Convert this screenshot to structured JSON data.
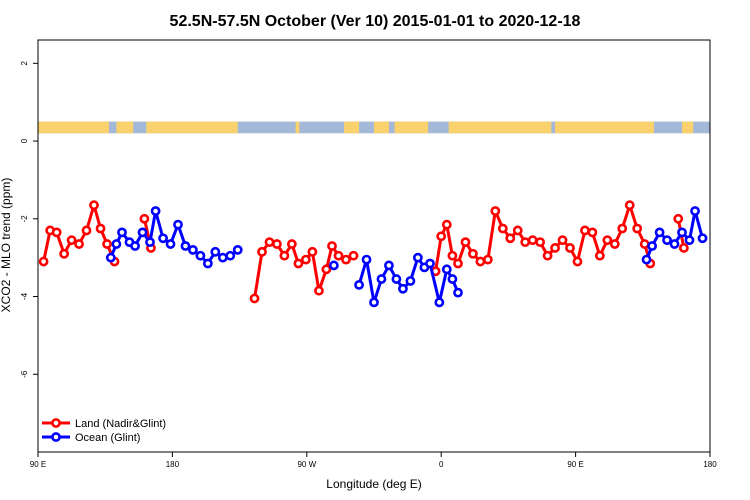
{
  "chart_data": {
    "type": "line",
    "title": "52.5N-57.5N October (Ver 10)   2015-01-01 to 2020-12-18",
    "xlabel": "Longitude (deg E)",
    "ylabel": "XCO2 - MLO trend (ppm)",
    "xlim": [
      90,
      450
    ],
    "ylim": [
      -8,
      2.6
    ],
    "x_ticks": [
      {
        "value": 90,
        "label": "90 E"
      },
      {
        "value": 162,
        "label": "180"
      },
      {
        "value": 234,
        "label": "90 W"
      },
      {
        "value": 306,
        "label": "0"
      },
      {
        "value": 378,
        "label": "90 E"
      },
      {
        "value": 450,
        "label": "180"
      }
    ],
    "y_ticks": [
      {
        "value": 2,
        "label": "2"
      },
      {
        "value": 0,
        "label": "0"
      },
      {
        "value": -2,
        "label": "-2"
      },
      {
        "value": -4,
        "label": "-4"
      },
      {
        "value": -6,
        "label": "-6"
      }
    ],
    "land_sea_strip": {
      "y_range": [
        0.2,
        0.5
      ],
      "ocean_color": "#a4b8d8",
      "land_color": "#f9d26e",
      "land_lon_ranges": [
        [
          90,
          128
        ],
        [
          132,
          141
        ],
        [
          148,
          197
        ],
        [
          228,
          230
        ],
        [
          254,
          262
        ],
        [
          270,
          278
        ],
        [
          281,
          299
        ],
        [
          310,
          365
        ],
        [
          367,
          420
        ],
        [
          435,
          441
        ]
      ]
    },
    "series": [
      {
        "name": "Land (Nadir&Glint)",
        "color": "#ff0000",
        "segments": [
          [
            [
              93,
              -3.1
            ],
            [
              96.5,
              -2.3
            ],
            [
              100,
              -2.35
            ],
            [
              104,
              -2.9
            ],
            [
              108,
              -2.55
            ],
            [
              112,
              -2.65
            ],
            [
              116,
              -2.3
            ],
            [
              120,
              -1.65
            ],
            [
              123.5,
              -2.25
            ],
            [
              127,
              -2.65
            ],
            [
              131,
              -3.1
            ]
          ],
          [
            [
              147,
              -2.0
            ],
            [
              150.5,
              -2.75
            ]
          ],
          [
            [
              206,
              -4.05
            ],
            [
              210,
              -2.85
            ],
            [
              214,
              -2.6
            ],
            [
              218,
              -2.65
            ],
            [
              222,
              -2.95
            ],
            [
              226,
              -2.65
            ],
            [
              229.5,
              -3.15
            ],
            [
              233.5,
              -3.05
            ],
            [
              237,
              -2.85
            ],
            [
              240.5,
              -3.85
            ],
            [
              244.5,
              -3.3
            ],
            [
              247.5,
              -2.7
            ],
            [
              251,
              -2.95
            ],
            [
              255,
              -3.05
            ],
            [
              259,
              -2.95
            ]
          ],
          [
            [
              303,
              -3.35
            ],
            [
              306,
              -2.45
            ],
            [
              309,
              -2.15
            ],
            [
              312,
              -2.95
            ],
            [
              315,
              -3.15
            ],
            [
              319,
              -2.6
            ],
            [
              323,
              -2.9
            ],
            [
              327,
              -3.1
            ],
            [
              331,
              -3.05
            ],
            [
              335,
              -1.8
            ],
            [
              339,
              -2.25
            ],
            [
              343,
              -2.5
            ],
            [
              347,
              -2.3
            ],
            [
              351,
              -2.6
            ],
            [
              355,
              -2.55
            ],
            [
              359,
              -2.6
            ],
            [
              363,
              -2.95
            ],
            [
              367,
              -2.75
            ],
            [
              371,
              -2.55
            ],
            [
              375,
              -2.75
            ],
            [
              379,
              -3.1
            ],
            [
              383,
              -2.3
            ],
            [
              387,
              -2.35
            ],
            [
              391,
              -2.95
            ],
            [
              395,
              -2.55
            ],
            [
              399,
              -2.65
            ],
            [
              403,
              -2.25
            ],
            [
              407,
              -1.65
            ],
            [
              411,
              -2.25
            ],
            [
              415,
              -2.65
            ],
            [
              418,
              -3.15
            ]
          ],
          [
            [
              433,
              -2.0
            ],
            [
              436,
              -2.75
            ]
          ]
        ]
      },
      {
        "name": "Ocean (Glint)",
        "color": "#0000ff",
        "segments": [
          [
            [
              129,
              -3.0
            ],
            [
              132,
              -2.65
            ],
            [
              135,
              -2.35
            ],
            [
              139,
              -2.6
            ],
            [
              142,
              -2.7
            ],
            [
              146,
              -2.35
            ],
            [
              150,
              -2.6
            ],
            [
              153,
              -1.8
            ],
            [
              157,
              -2.5
            ],
            [
              161,
              -2.65
            ],
            [
              165,
              -2.15
            ],
            [
              169,
              -2.7
            ],
            [
              173,
              -2.8
            ],
            [
              177,
              -2.95
            ],
            [
              181,
              -3.15
            ],
            [
              185,
              -2.85
            ],
            [
              189,
              -3.0
            ],
            [
              193,
              -2.95
            ],
            [
              197,
              -2.8
            ]
          ],
          [
            [
              248.5,
              -3.2
            ]
          ],
          [
            [
              262,
              -3.7
            ],
            [
              266,
              -3.05
            ],
            [
              270,
              -4.15
            ],
            [
              274,
              -3.55
            ],
            [
              278,
              -3.2
            ],
            [
              282,
              -3.55
            ],
            [
              285.5,
              -3.8
            ],
            [
              289.5,
              -3.6
            ],
            [
              293.5,
              -3.0
            ],
            [
              297,
              -3.25
            ],
            [
              300,
              -3.15
            ],
            [
              305,
              -4.15
            ],
            [
              309,
              -3.3
            ],
            [
              312,
              -3.55
            ],
            [
              315,
              -3.9
            ]
          ],
          [
            [
              416,
              -3.05
            ],
            [
              419,
              -2.7
            ],
            [
              423,
              -2.35
            ],
            [
              427,
              -2.55
            ],
            [
              431,
              -2.65
            ],
            [
              435,
              -2.35
            ],
            [
              439,
              -2.55
            ],
            [
              442,
              -1.8
            ],
            [
              446,
              -2.5
            ]
          ]
        ]
      }
    ],
    "legend": {
      "position": "bottom-left",
      "entries": [
        {
          "label": "Land (Nadir&Glint)",
          "color": "#ff0000"
        },
        {
          "label": "Ocean (Glint)",
          "color": "#0000ff"
        }
      ]
    }
  }
}
